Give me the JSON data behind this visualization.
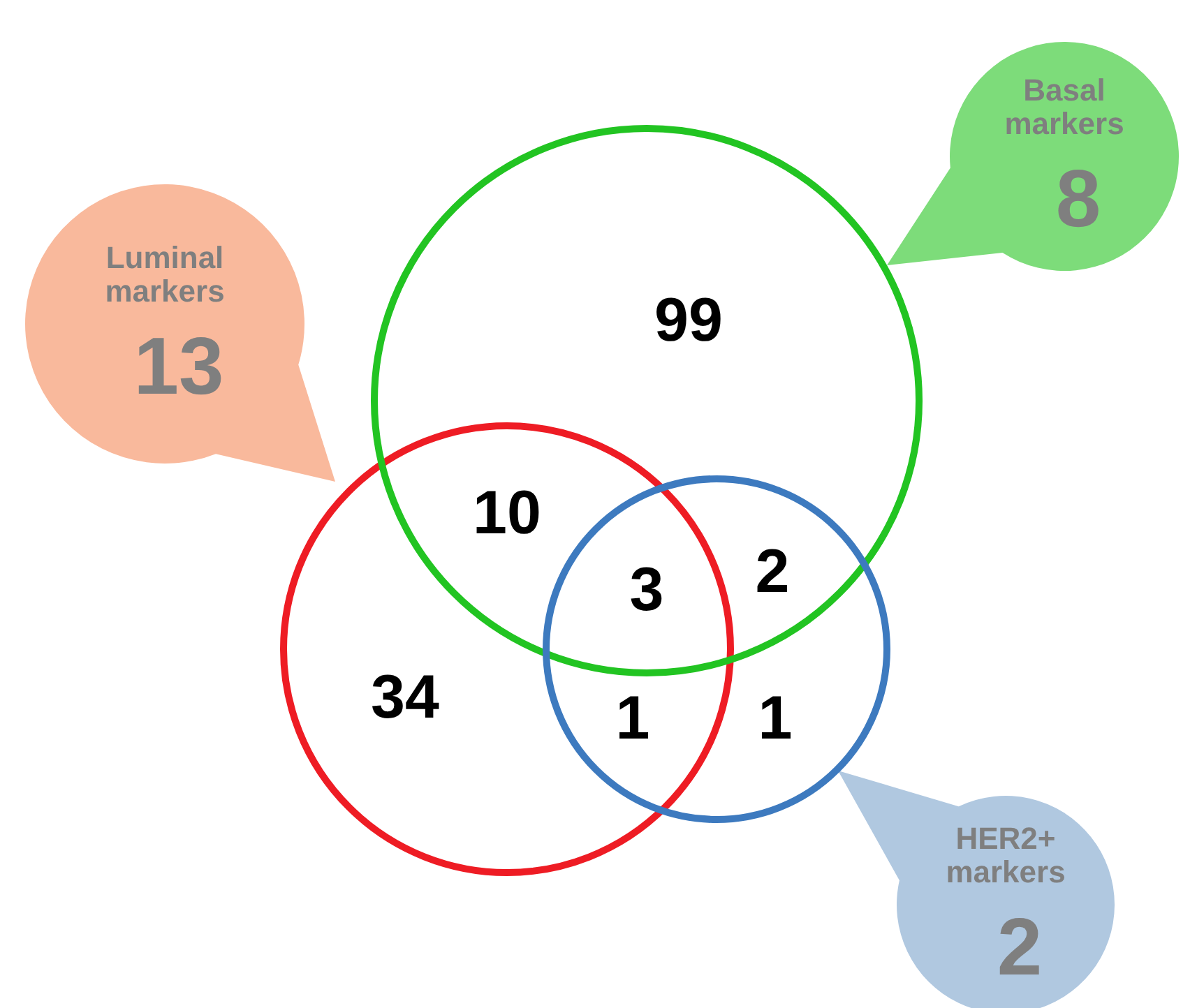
{
  "chart_data": {
    "type": "other",
    "categories": [
      "Luminal markers",
      "Basal markers",
      "HER2+ markers"
    ],
    "values": [
      13,
      8,
      2
    ],
    "colors": [
      "#f9b99c",
      "#7ddc7a",
      "#b0c8e0"
    ],
    "data_labels": true,
    "annotations": [
      "99",
      "10",
      "3",
      "2",
      "34",
      "1",
      "1"
    ]
  }
}
